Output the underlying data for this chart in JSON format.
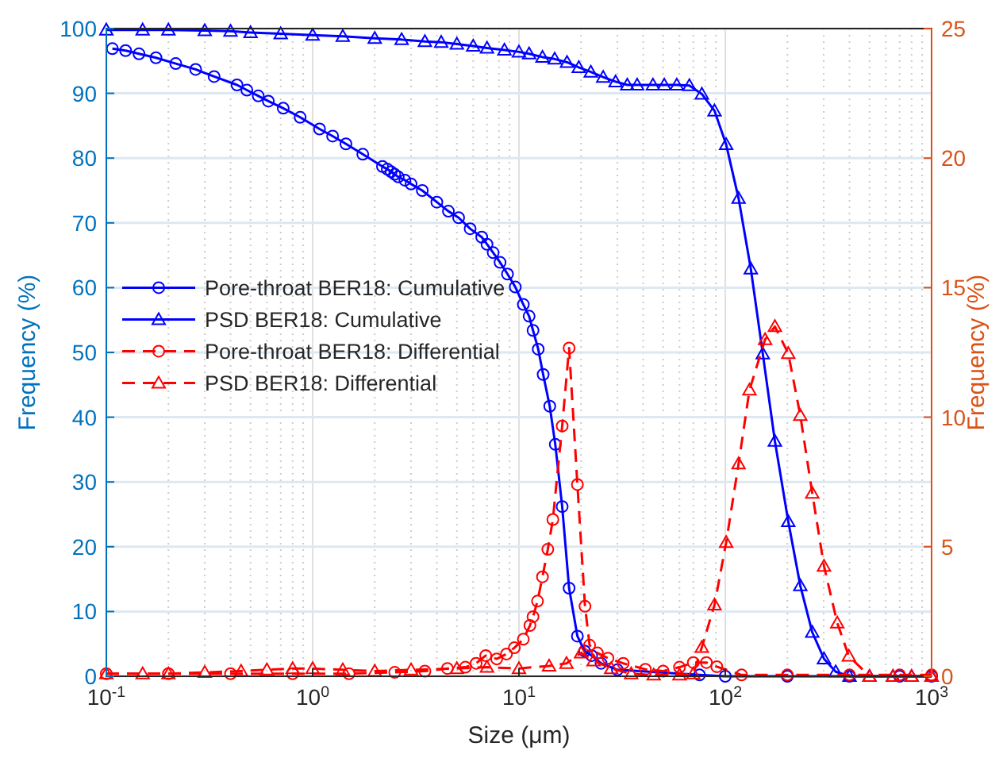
{
  "chart_data": {
    "type": "line",
    "xlabel": "Size (μm)",
    "ylabel": "Frequency (%)",
    "y2label": "Frequency (%)",
    "log": "x",
    "grid": true,
    "legend": "left",
    "xlim": [
      0.1,
      1000
    ],
    "xticks": [
      {
        "value": 0.1,
        "label": "10$^{-1}$"
      },
      {
        "value": 1,
        "label": "10$^{0}$"
      },
      {
        "value": 10,
        "label": "10$^{1}$"
      },
      {
        "value": 100,
        "label": "10$^{2}$"
      },
      {
        "value": 1000,
        "label": "10$^{3}$"
      }
    ],
    "ylim": [
      0,
      100
    ],
    "yticks": [
      0,
      10,
      20,
      30,
      40,
      50,
      60,
      70,
      80,
      90,
      100
    ],
    "y2lim": [
      0,
      25
    ],
    "y2ticks": [
      0,
      5,
      10,
      15,
      20,
      25
    ],
    "series": [
      {
        "name": "Pore-throat BER18: Cumulative",
        "color": "#0000ff",
        "marker": "circle",
        "line_style": "solid",
        "x": [
          0.107,
          0.124,
          0.144,
          0.174,
          0.217,
          0.271,
          0.333,
          0.43,
          0.48,
          0.545,
          0.61,
          0.72,
          0.87,
          1.08,
          1.25,
          1.45,
          1.75,
          2.18,
          2.3,
          2.4,
          2.5,
          2.6,
          2.8,
          3.0,
          3.4,
          4.0,
          4.55,
          5.1,
          5.8,
          6.6,
          7.0,
          7.5,
          8.1,
          8.8,
          9.6,
          10.5,
          11.2,
          11.7,
          12.4,
          13.1,
          14.1,
          15.0,
          16.2,
          17.5,
          19.2,
          20.8,
          22.5,
          25,
          30,
          41,
          75,
          100,
          200,
          400,
          700,
          1000
        ],
        "values": [
          96.9,
          96.6,
          96.1,
          95.5,
          94.6,
          93.7,
          92.6,
          91.3,
          90.5,
          89.6,
          88.8,
          87.7,
          86.3,
          84.5,
          83.4,
          82.2,
          80.6,
          78.7,
          78.3,
          77.9,
          77.5,
          77.1,
          76.6,
          76,
          75,
          73.2,
          71.8,
          70.8,
          69.1,
          67.8,
          66.7,
          65.4,
          63.9,
          62.1,
          60.1,
          57.4,
          55.6,
          53.4,
          50.5,
          46.6,
          41.7,
          35.8,
          26.2,
          13.6,
          6.2,
          3.9,
          3.2,
          2,
          1,
          null,
          0.2,
          0,
          0,
          0,
          0,
          0
        ]
      },
      {
        "name": "PSD BER18: Cumulative",
        "color": "#0000ff",
        "marker": "triangle",
        "line_style": "solid",
        "x": [
          0.1,
          0.15,
          0.2,
          0.3,
          0.4,
          0.5,
          0.7,
          1,
          1.4,
          2,
          2.7,
          3.5,
          4.2,
          5,
          6,
          7,
          8.5,
          10,
          11.2,
          13,
          14.9,
          17.1,
          19.5,
          22.3,
          25.6,
          29.4,
          33.5,
          37.4,
          44.6,
          50.6,
          58.2,
          67,
          77,
          88.7,
          101,
          116,
          133,
          152,
          174,
          202,
          231,
          264,
          301,
          343,
          400,
          500,
          650,
          800,
          1000
        ],
        "values": [
          99.8,
          99.8,
          99.8,
          99.7,
          99.6,
          99.4,
          99.2,
          99,
          98.8,
          98.5,
          98.3,
          98,
          97.9,
          97.6,
          97.3,
          97,
          96.7,
          96.4,
          96.1,
          95.6,
          95.3,
          94.8,
          94,
          93.3,
          92.5,
          91.8,
          91.3,
          91.3,
          91.3,
          91.3,
          91.3,
          91.2,
          89.9,
          87.3,
          82.1,
          73.8,
          62.9,
          49.8,
          36.3,
          23.9,
          14,
          6.8,
          2.7,
          0.7,
          0,
          0,
          0,
          0,
          0
        ]
      },
      {
        "name": "Pore-throat BER18: Differential",
        "color": "#ff0000",
        "marker": "circle",
        "line_style": "dashed",
        "axis": "y2",
        "x": [
          0.1,
          0.2,
          0.4,
          0.8,
          1.5,
          2.5,
          3.5,
          4.5,
          5.5,
          6.2,
          6.9,
          7.8,
          8.7,
          9.5,
          10.5,
          11.3,
          11.7,
          12.3,
          13.0,
          13.8,
          14.6,
          16.2,
          17.5,
          19.2,
          20.9,
          22,
          24,
          27,
          32,
          41,
          50,
          60,
          70,
          81,
          91,
          120,
          200,
          400,
          700,
          1000
        ],
        "values": [
          0.1,
          0.1,
          0.1,
          0.1,
          0.1,
          0.15,
          0.2,
          0.3,
          0.35,
          0.5,
          0.8,
          0.67,
          0.86,
          1.1,
          1.43,
          1.96,
          2.3,
          2.9,
          3.84,
          4.9,
          6.05,
          9.66,
          12.67,
          7.4,
          2.7,
          1.2,
          0.9,
          0.7,
          0.5,
          0.27,
          0.2,
          0.35,
          0.53,
          0.53,
          0.37,
          0.05,
          0.05,
          0.05,
          0.05,
          0.05
        ]
      },
      {
        "name": "PSD BER18: Differential",
        "color": "#ff0000",
        "marker": "triangle",
        "line_style": "dashed",
        "axis": "y2",
        "x": [
          0.1,
          0.15,
          0.2,
          0.3,
          0.45,
          0.6,
          0.8,
          1,
          1.4,
          2,
          3,
          5,
          7,
          10,
          14,
          17,
          20,
          23,
          28,
          35,
          45,
          60,
          70,
          77,
          88.7,
          101,
          116,
          131,
          156,
          174,
          202,
          231,
          264,
          301,
          349,
          397,
          500,
          650,
          800,
          1000
        ],
        "values": [
          0.1,
          0.1,
          0.1,
          0.15,
          0.2,
          0.25,
          0.3,
          0.3,
          0.25,
          0.2,
          0.25,
          0.3,
          0.35,
          0.3,
          0.4,
          0.5,
          0.9,
          0.6,
          0.3,
          0.1,
          0.05,
          0.05,
          0.1,
          1.12,
          2.76,
          5.17,
          8.2,
          11.05,
          13.0,
          13.5,
          12.46,
          10.07,
          7.07,
          4.25,
          2.06,
          0.78,
          0,
          0,
          0,
          0
        ]
      }
    ]
  }
}
